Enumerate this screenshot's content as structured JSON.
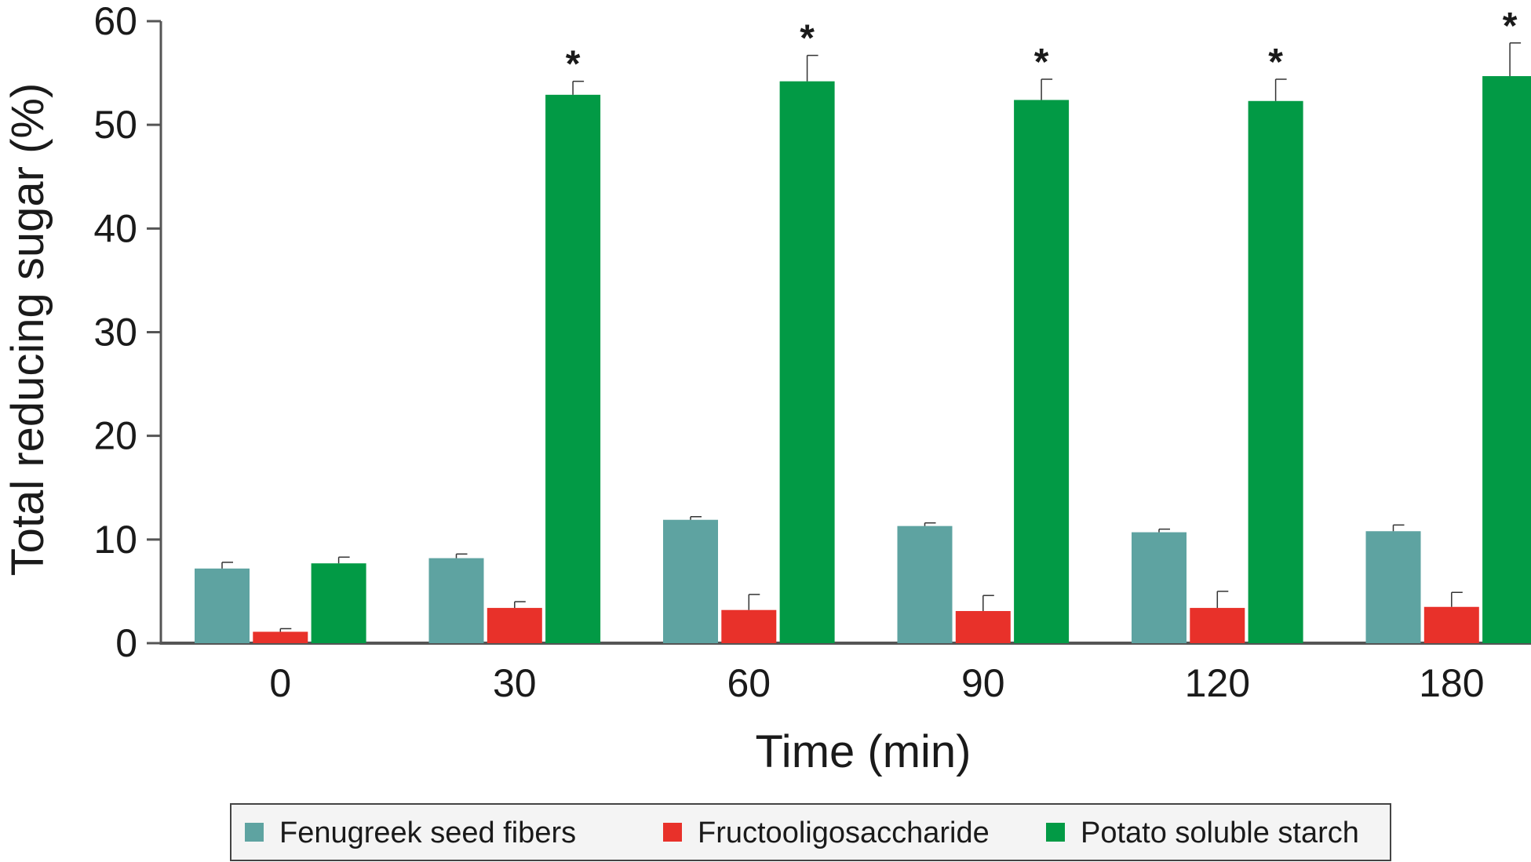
{
  "chart_data": {
    "type": "bar",
    "title": "",
    "xlabel": "Time (min)",
    "ylabel": "Total reducing sugar (%)",
    "ylim": [
      0,
      60
    ],
    "yticks": [
      "0",
      "10",
      "20",
      "30",
      "40",
      "50",
      "60"
    ],
    "categories": [
      "0",
      "30",
      "60",
      "90",
      "120",
      "180"
    ],
    "series": [
      {
        "name": "Fenugreek seed fibers",
        "color": "#5ea3a1",
        "values": [
          7.2,
          8.2,
          11.9,
          11.3,
          10.7,
          10.8
        ],
        "errors": [
          0.6,
          0.4,
          0.3,
          0.3,
          0.3,
          0.6
        ]
      },
      {
        "name": "Fructooligosaccharide",
        "color": "#e8312a",
        "values": [
          1.1,
          3.4,
          3.2,
          3.1,
          3.4,
          3.5
        ],
        "errors": [
          0.3,
          0.6,
          1.5,
          1.5,
          1.6,
          1.4
        ]
      },
      {
        "name": "Potato soluble starch",
        "color": "#029a45",
        "values": [
          7.7,
          52.9,
          54.2,
          52.4,
          52.3,
          54.7
        ],
        "errors": [
          0.6,
          1.3,
          2.5,
          2.0,
          2.1,
          3.2
        ]
      }
    ],
    "annotations": [
      "",
      "*",
      "*",
      "*",
      "*",
      "*"
    ],
    "legend_position": "bottom",
    "grid": false
  }
}
